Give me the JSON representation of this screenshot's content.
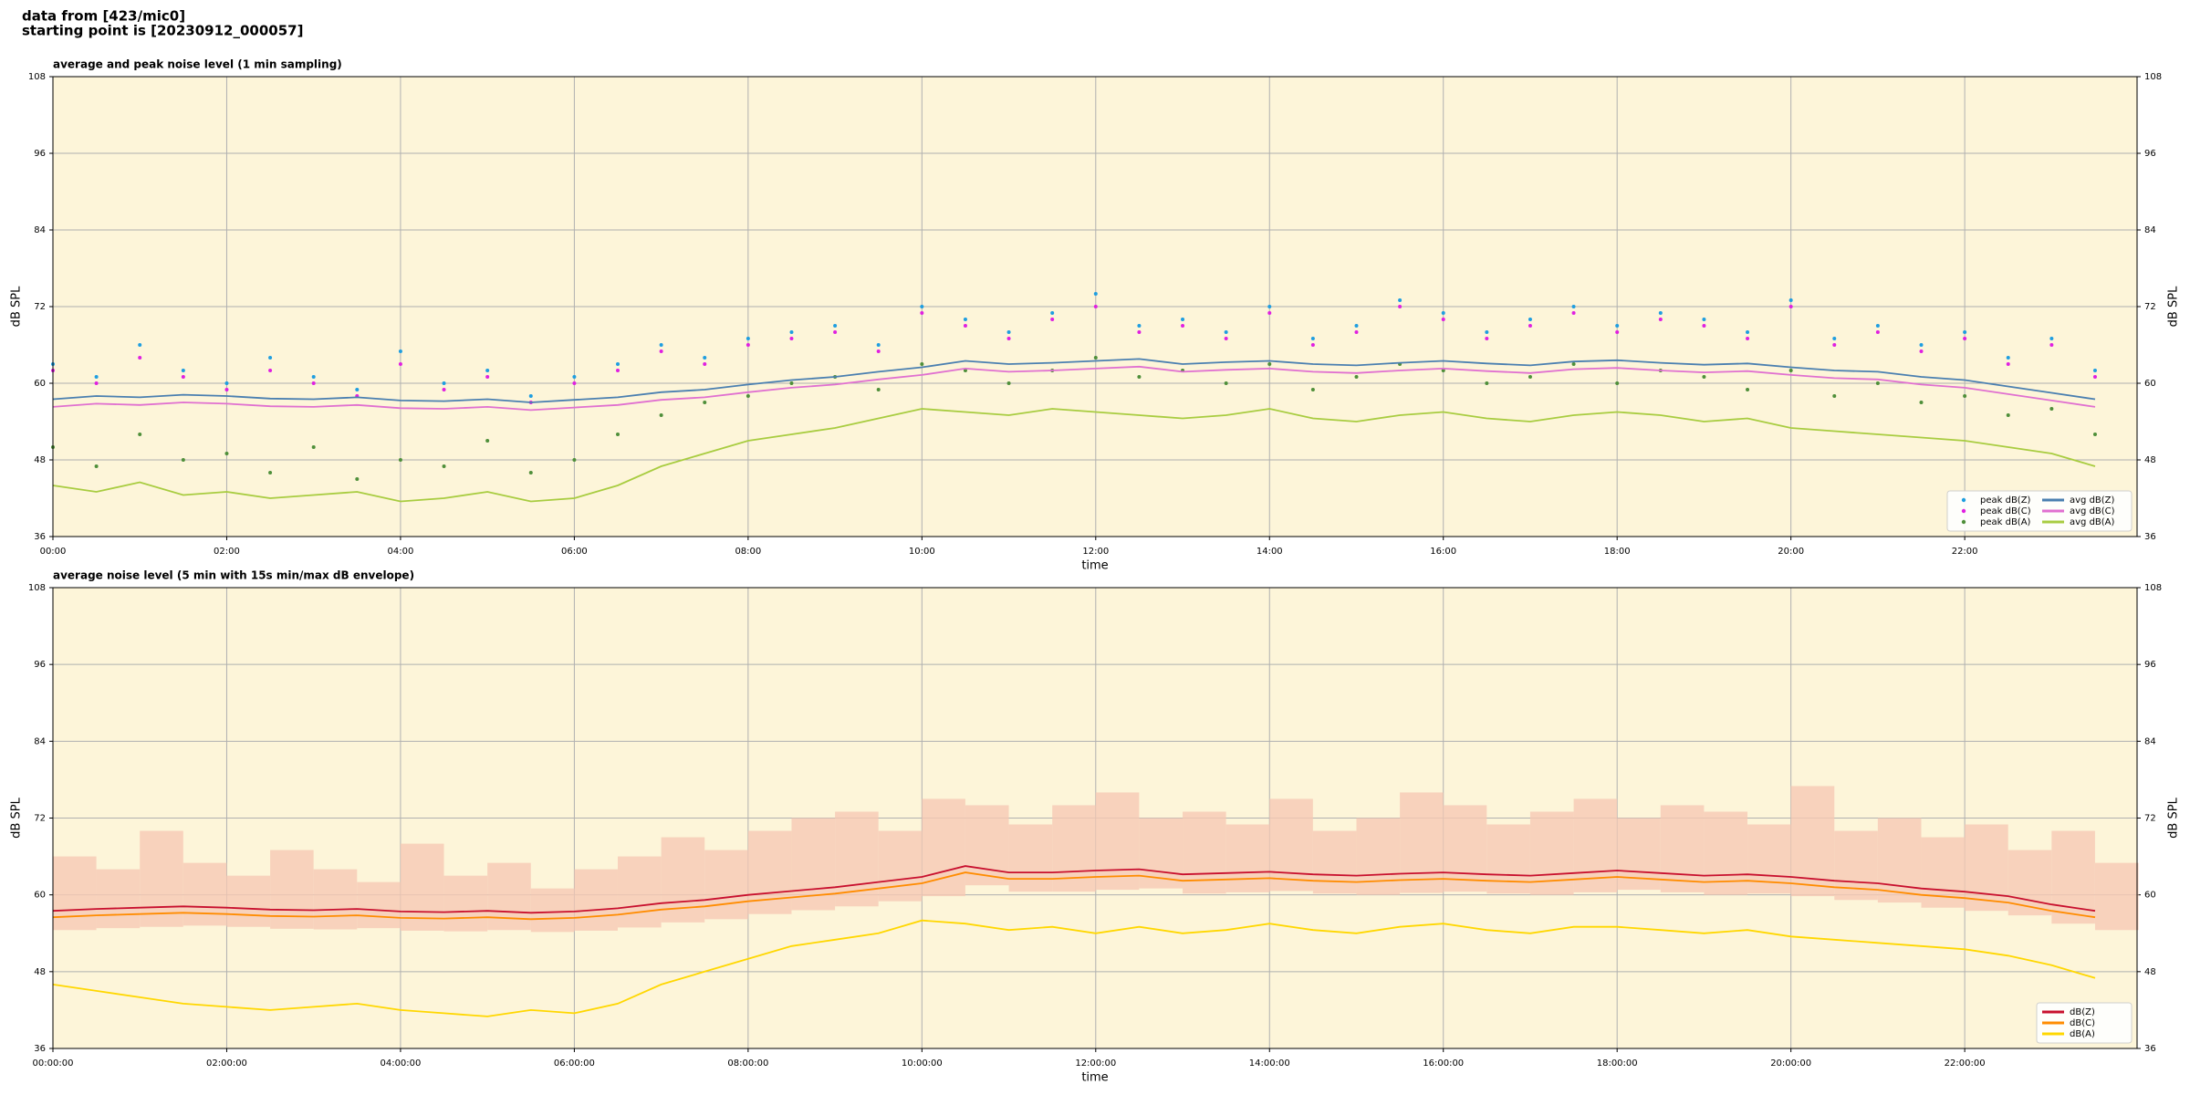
{
  "header": {
    "lines": [
      "data from [423/mic0]",
      "starting point is [20230912_000057]"
    ]
  },
  "chart_data": [
    {
      "type": "line",
      "title": "average and peak noise level (1 min sampling)",
      "xlabel": "time",
      "ylabel": "dB SPL",
      "x": [
        "00:00",
        "00:30",
        "01:00",
        "01:30",
        "02:00",
        "02:30",
        "03:00",
        "03:30",
        "04:00",
        "04:30",
        "05:00",
        "05:30",
        "06:00",
        "06:30",
        "07:00",
        "07:30",
        "08:00",
        "08:30",
        "09:00",
        "09:30",
        "10:00",
        "10:30",
        "11:00",
        "11:30",
        "12:00",
        "12:30",
        "13:00",
        "13:30",
        "14:00",
        "14:30",
        "15:00",
        "15:30",
        "16:00",
        "16:30",
        "17:00",
        "17:30",
        "18:00",
        "18:30",
        "19:00",
        "19:30",
        "20:00",
        "20:30",
        "21:00",
        "21:30",
        "22:00",
        "22:30",
        "23:00",
        "23:30"
      ],
      "xlim": [
        "00:00",
        "23:59"
      ],
      "xticks": [
        "00:00",
        "02:00",
        "04:00",
        "06:00",
        "08:00",
        "10:00",
        "12:00",
        "14:00",
        "16:00",
        "18:00",
        "20:00",
        "22:00"
      ],
      "ylim": [
        36,
        108
      ],
      "yticks": [
        36,
        48,
        60,
        72,
        84,
        96,
        108
      ],
      "grid": true,
      "legend": "lower right",
      "background": "#fdf5d9",
      "series": [
        {
          "name": "peak dB(Z)",
          "style": "points",
          "color": "#1f9ee0",
          "values": [
            63,
            61,
            66,
            62,
            60,
            64,
            61,
            59,
            65,
            60,
            62,
            58,
            61,
            63,
            66,
            64,
            67,
            68,
            69,
            66,
            72,
            70,
            68,
            71,
            74,
            69,
            70,
            68,
            72,
            67,
            69,
            73,
            71,
            68,
            70,
            72,
            69,
            71,
            70,
            68,
            73,
            67,
            69,
            66,
            68,
            64,
            67,
            62
          ]
        },
        {
          "name": "peak dB(C)",
          "style": "points",
          "color": "#e020e0",
          "values": [
            62,
            60,
            64,
            61,
            59,
            62,
            60,
            58,
            63,
            59,
            61,
            57,
            60,
            62,
            65,
            63,
            66,
            67,
            68,
            65,
            71,
            69,
            67,
            70,
            72,
            68,
            69,
            67,
            71,
            66,
            68,
            72,
            70,
            67,
            69,
            71,
            68,
            70,
            69,
            67,
            72,
            66,
            68,
            65,
            67,
            63,
            66,
            61
          ]
        },
        {
          "name": "peak dB(A)",
          "style": "points",
          "color": "#4f8f3a",
          "values": [
            50,
            47,
            52,
            48,
            49,
            46,
            50,
            45,
            48,
            47,
            51,
            46,
            48,
            52,
            55,
            57,
            58,
            60,
            61,
            59,
            63,
            62,
            60,
            62,
            64,
            61,
            62,
            60,
            63,
            59,
            61,
            63,
            62,
            60,
            61,
            63,
            60,
            62,
            61,
            59,
            62,
            58,
            60,
            57,
            58,
            55,
            56,
            52
          ]
        },
        {
          "name": "avg dB(Z)",
          "style": "line",
          "color": "#4a7fb0",
          "values": [
            57.5,
            58,
            57.8,
            58.2,
            58,
            57.6,
            57.5,
            57.8,
            57.3,
            57.2,
            57.5,
            57,
            57.4,
            57.8,
            58.6,
            59,
            59.8,
            60.5,
            61,
            61.8,
            62.5,
            63.5,
            63,
            63.2,
            63.5,
            63.8,
            63,
            63.3,
            63.5,
            63,
            62.8,
            63.2,
            63.5,
            63.1,
            62.8,
            63.4,
            63.6,
            63.2,
            62.9,
            63.1,
            62.5,
            62,
            61.8,
            61,
            60.5,
            59.5,
            58.5,
            57.5
          ]
        },
        {
          "name": "avg dB(C)",
          "style": "line",
          "color": "#e070d0",
          "values": [
            56.3,
            56.8,
            56.6,
            57,
            56.8,
            56.4,
            56.3,
            56.6,
            56.1,
            56,
            56.3,
            55.8,
            56.2,
            56.6,
            57.4,
            57.8,
            58.6,
            59.3,
            59.8,
            60.6,
            61.3,
            62.3,
            61.8,
            62,
            62.3,
            62.6,
            61.8,
            62.1,
            62.3,
            61.8,
            61.6,
            62,
            62.3,
            61.9,
            61.6,
            62.2,
            62.4,
            62,
            61.7,
            61.9,
            61.3,
            60.8,
            60.6,
            59.8,
            59.3,
            58.3,
            57.3,
            56.3
          ]
        },
        {
          "name": "avg dB(A)",
          "style": "line",
          "color": "#a8cc40",
          "values": [
            44,
            43,
            44.5,
            42.5,
            43,
            42,
            42.5,
            43,
            41.5,
            42,
            43,
            41.5,
            42,
            44,
            47,
            49,
            51,
            52,
            53,
            54.5,
            56,
            55.5,
            55,
            56,
            55.5,
            55,
            54.5,
            55,
            56,
            54.5,
            54,
            55,
            55.5,
            54.5,
            54,
            55,
            55.5,
            55,
            54,
            54.5,
            53,
            52.5,
            52,
            51.5,
            51,
            50,
            49,
            47
          ]
        }
      ]
    },
    {
      "type": "line",
      "title": "average noise level (5 min with 15s min/max dB envelope)",
      "xlabel": "time",
      "ylabel": "dB SPL",
      "x": [
        "00:00:00",
        "00:30:00",
        "01:00:00",
        "01:30:00",
        "02:00:00",
        "02:30:00",
        "03:00:00",
        "03:30:00",
        "04:00:00",
        "04:30:00",
        "05:00:00",
        "05:30:00",
        "06:00:00",
        "06:30:00",
        "07:00:00",
        "07:30:00",
        "08:00:00",
        "08:30:00",
        "09:00:00",
        "09:30:00",
        "10:00:00",
        "10:30:00",
        "11:00:00",
        "11:30:00",
        "12:00:00",
        "12:30:00",
        "13:00:00",
        "13:30:00",
        "14:00:00",
        "14:30:00",
        "15:00:00",
        "15:30:00",
        "16:00:00",
        "16:30:00",
        "17:00:00",
        "17:30:00",
        "18:00:00",
        "18:30:00",
        "19:00:00",
        "19:30:00",
        "20:00:00",
        "20:30:00",
        "21:00:00",
        "21:30:00",
        "22:00:00",
        "22:30:00",
        "23:00:00",
        "23:30:00"
      ],
      "xlim": [
        "00:00:00",
        "23:59:00"
      ],
      "xticks": [
        "00:00:00",
        "02:00:00",
        "04:00:00",
        "06:00:00",
        "08:00:00",
        "10:00:00",
        "12:00:00",
        "14:00:00",
        "16:00:00",
        "18:00:00",
        "20:00:00",
        "22:00:00"
      ],
      "ylim": [
        36,
        108
      ],
      "yticks": [
        36,
        48,
        60,
        72,
        84,
        96,
        108
      ],
      "grid": true,
      "legend": "lower right",
      "background": "#fdf5d9",
      "envelope": {
        "color": "#f6c9b4",
        "lower": [
          54.5,
          54.8,
          55,
          55.2,
          55,
          54.7,
          54.6,
          54.8,
          54.4,
          54.3,
          54.5,
          54.2,
          54.4,
          54.9,
          55.7,
          56.2,
          57,
          57.6,
          58.2,
          59,
          59.8,
          61.5,
          60.5,
          60.5,
          60.8,
          61,
          60.2,
          60.4,
          60.6,
          60.2,
          60,
          60.3,
          60.5,
          60.2,
          60,
          60.4,
          60.8,
          60.4,
          60,
          60.2,
          59.8,
          59.2,
          58.8,
          58,
          57.5,
          56.8,
          55.5,
          54.5
        ],
        "upper": [
          66,
          64,
          70,
          65,
          63,
          67,
          64,
          62,
          68,
          63,
          65,
          61,
          64,
          66,
          69,
          67,
          70,
          72,
          73,
          70,
          75,
          74,
          71,
          74,
          76,
          72,
          73,
          71,
          75,
          70,
          72,
          76,
          74,
          71,
          73,
          75,
          72,
          74,
          73,
          71,
          77,
          70,
          72,
          69,
          71,
          67,
          70,
          65
        ]
      },
      "series": [
        {
          "name": "dB(Z)",
          "style": "line",
          "color": "#c8102e",
          "values": [
            57.5,
            57.8,
            58,
            58.2,
            58,
            57.7,
            57.6,
            57.8,
            57.4,
            57.3,
            57.5,
            57.2,
            57.4,
            57.9,
            58.7,
            59.2,
            60,
            60.6,
            61.2,
            62,
            62.8,
            64.5,
            63.5,
            63.5,
            63.8,
            64,
            63.2,
            63.4,
            63.6,
            63.2,
            63,
            63.3,
            63.5,
            63.2,
            63,
            63.4,
            63.8,
            63.4,
            63,
            63.2,
            62.8,
            62.2,
            61.8,
            61,
            60.5,
            59.8,
            58.5,
            57.5
          ]
        },
        {
          "name": "dB(C)",
          "style": "line",
          "color": "#ff8c00",
          "values": [
            56.5,
            56.8,
            57,
            57.2,
            57,
            56.7,
            56.6,
            56.8,
            56.4,
            56.3,
            56.5,
            56.2,
            56.4,
            56.9,
            57.7,
            58.2,
            59,
            59.6,
            60.2,
            61,
            61.8,
            63.5,
            62.5,
            62.5,
            62.8,
            63,
            62.2,
            62.4,
            62.6,
            62.2,
            62,
            62.3,
            62.5,
            62.2,
            62,
            62.4,
            62.8,
            62.4,
            62,
            62.2,
            61.8,
            61.2,
            60.8,
            60,
            59.5,
            58.8,
            57.5,
            56.5
          ]
        },
        {
          "name": "dB(A)",
          "style": "line",
          "color": "#ffd700",
          "values": [
            46,
            45,
            44,
            43,
            42.5,
            42,
            42.5,
            43,
            42,
            41.5,
            41,
            42,
            41.5,
            43,
            46,
            48,
            50,
            52,
            53,
            54,
            56,
            55.5,
            54.5,
            55,
            54,
            55,
            54,
            54.5,
            55.5,
            54.5,
            54,
            55,
            55.5,
            54.5,
            54,
            55,
            55,
            54.5,
            54,
            54.5,
            53.5,
            53,
            52.5,
            52,
            51.5,
            50.5,
            49,
            47
          ]
        }
      ]
    }
  ]
}
